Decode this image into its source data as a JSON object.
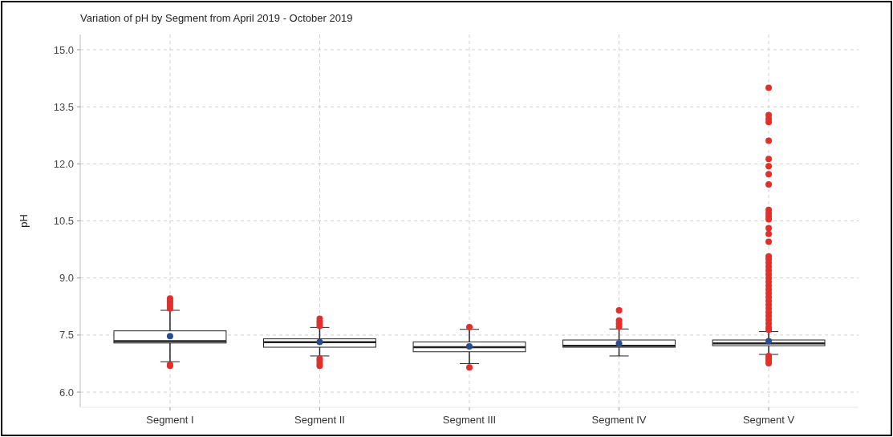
{
  "chart_data": {
    "type": "box",
    "title": "Variation of pH by Segment from April 2019 - October 2019",
    "ylabel": "pH",
    "categories": [
      "Segment I",
      "Segment II",
      "Segment III",
      "Segment IV",
      "Segment V"
    ],
    "boxes": [
      {
        "low": 6.8,
        "q1": 7.29,
        "median": 7.34,
        "q3": 7.61,
        "high": 8.15,
        "mean": 7.47,
        "outliers": [
          8.2,
          8.27,
          8.34,
          8.4,
          8.46,
          6.69,
          6.72
        ]
      },
      {
        "low": 6.95,
        "q1": 7.18,
        "median": 7.31,
        "q3": 7.4,
        "high": 7.7,
        "mean": 7.32,
        "outliers": [
          7.74,
          7.8,
          7.86,
          7.93,
          6.69,
          6.75,
          6.82,
          6.88
        ]
      },
      {
        "low": 6.75,
        "q1": 7.06,
        "median": 7.18,
        "q3": 7.32,
        "high": 7.65,
        "mean": 7.2,
        "outliers": [
          7.71,
          6.65
        ]
      },
      {
        "low": 6.95,
        "q1": 7.18,
        "median": 7.22,
        "q3": 7.37,
        "high": 7.66,
        "mean": 7.28,
        "outliers": [
          7.72,
          7.8,
          7.88,
          8.15
        ]
      },
      {
        "low": 6.99,
        "q1": 7.22,
        "median": 7.28,
        "q3": 7.37,
        "high": 7.59,
        "mean": 7.34,
        "outliers": [
          14.0,
          13.28,
          13.18,
          13.1,
          12.61,
          12.13,
          11.94,
          11.73,
          11.46,
          10.79,
          10.7,
          10.62,
          10.54,
          10.31,
          10.16,
          9.95,
          9.57,
          9.5,
          9.4,
          9.3,
          9.2,
          9.1,
          9.0,
          8.9,
          8.8,
          8.7,
          8.6,
          8.5,
          8.4,
          8.3,
          8.2,
          8.1,
          8.0,
          7.9,
          7.8,
          7.7,
          7.64,
          6.95,
          6.88,
          6.82,
          6.76
        ]
      }
    ],
    "ylim": [
      5.6,
      15.4
    ],
    "yticks": [
      {
        "value": 6,
        "label": "6.0"
      },
      {
        "value": 7.5,
        "label": "7.5"
      },
      {
        "value": 9,
        "label": "9.0"
      },
      {
        "value": 10.5,
        "label": "10.5"
      },
      {
        "value": 12,
        "label": "12.0"
      },
      {
        "value": 13.5,
        "label": "13.5"
      },
      {
        "value": 15,
        "label": "15.0"
      }
    ],
    "grid": true
  }
}
